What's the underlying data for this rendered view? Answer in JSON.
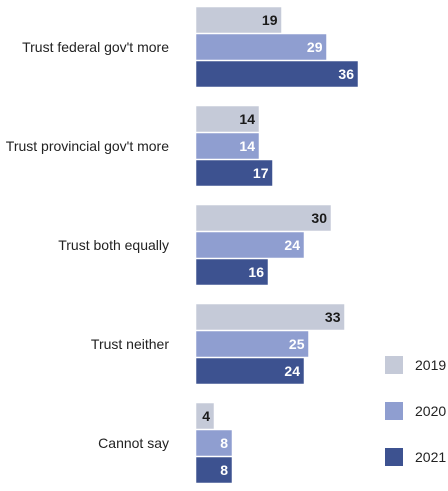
{
  "chart_data": {
    "type": "bar",
    "orientation": "horizontal",
    "categories": [
      "Trust federal gov't more",
      "Trust provincial gov't more",
      "Trust both equally",
      "Trust neither",
      "Cannot say"
    ],
    "series": [
      {
        "name": "2019",
        "values": [
          19,
          14,
          30,
          33,
          4
        ],
        "color": "#c5cad8",
        "label_color": "#1a1a1a"
      },
      {
        "name": "2020",
        "values": [
          29,
          14,
          24,
          25,
          8
        ],
        "color": "#8f9ed0",
        "label_color": "#ffffff"
      },
      {
        "name": "2021",
        "values": [
          36,
          17,
          16,
          24,
          8
        ],
        "color": "#3d5290",
        "label_color": "#ffffff"
      }
    ],
    "legend": "right",
    "grid": false,
    "data_labels": true
  }
}
